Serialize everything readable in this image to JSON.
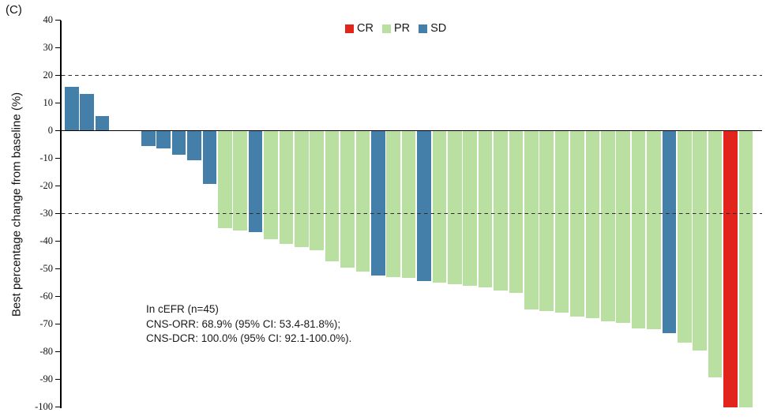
{
  "figure": {
    "panel_label": "(C)"
  },
  "colors": {
    "CR": "#e2251c",
    "PR": "#b9e0a0",
    "SD": "#447fa9",
    "axis": "#000000",
    "reference_line": "#2b2b2b"
  },
  "chart_data": {
    "type": "bar",
    "subtype": "waterfall",
    "title": "",
    "xlabel": "",
    "ylabel": "Best percentage change from baseline (%)",
    "ylim": [
      -100,
      40
    ],
    "yticks": [
      40,
      30,
      20,
      10,
      0,
      -10,
      -20,
      -30,
      -40,
      -50,
      -60,
      -70,
      -80,
      -90,
      -100
    ],
    "reference_lines": [
      20,
      -30
    ],
    "grid": false,
    "legend_position": "top-center",
    "legend": [
      {
        "label": "CR",
        "group": "CR"
      },
      {
        "label": "PR",
        "group": "PR"
      },
      {
        "label": "SD",
        "group": "SD"
      }
    ],
    "n_patients": 45,
    "values": [
      16,
      13.4,
      5.3,
      0,
      0,
      -5.5,
      -6.5,
      -8.6,
      -10.7,
      -19.3,
      -35.2,
      -36.2,
      -36.7,
      -39.3,
      -41,
      -42,
      -43.4,
      -47.4,
      -49.5,
      -51,
      -52.3,
      -52.9,
      -53.4,
      -54.4,
      -55,
      -55.7,
      -56.2,
      -56.8,
      -57.9,
      -58.6,
      -64.6,
      -65.3,
      -65.9,
      -67.2,
      -67.8,
      -68.9,
      -69.6,
      -71.5,
      -71.9,
      -73.2,
      -76.6,
      -79.5,
      -89.3,
      -100,
      -100
    ],
    "groups": [
      "SD",
      "SD",
      "SD",
      "SD",
      "SD",
      "SD",
      "SD",
      "SD",
      "SD",
      "SD",
      "PR",
      "PR",
      "SD",
      "PR",
      "PR",
      "PR",
      "PR",
      "PR",
      "PR",
      "PR",
      "SD",
      "PR",
      "PR",
      "SD",
      "PR",
      "PR",
      "PR",
      "PR",
      "PR",
      "PR",
      "PR",
      "PR",
      "PR",
      "PR",
      "PR",
      "PR",
      "PR",
      "PR",
      "PR",
      "SD",
      "PR",
      "PR",
      "PR",
      "CR",
      "PR"
    ]
  },
  "annotation": {
    "lines": [
      "In cEFR (n=45)",
      "CNS-ORR: 68.9% (95% CI: 53.4-81.8%);",
      "CNS-DCR: 100.0% (95% CI: 92.1-100.0%)."
    ]
  }
}
